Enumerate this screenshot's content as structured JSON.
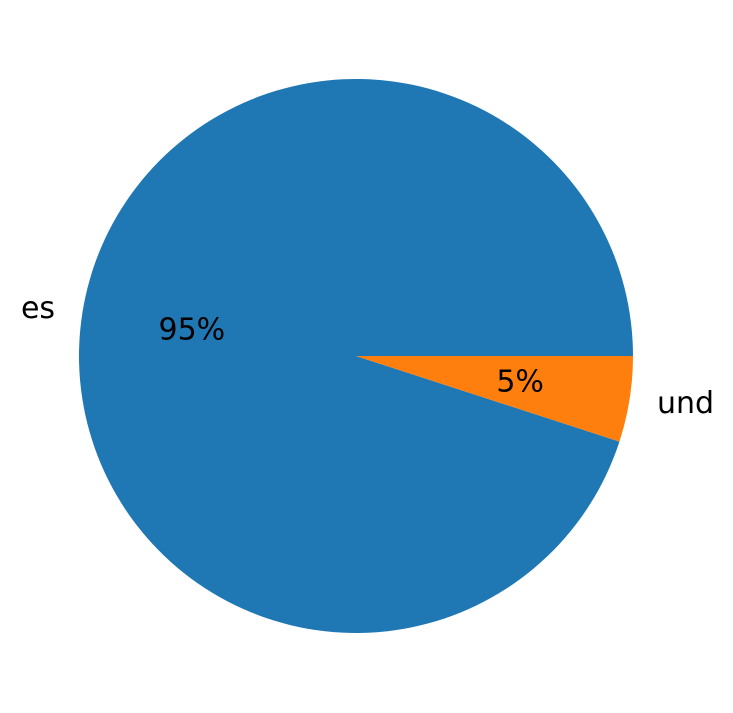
{
  "chart_data": {
    "type": "pie",
    "title": "",
    "labels": [
      "es",
      "und"
    ],
    "values": [
      95,
      5
    ],
    "pct_labels": [
      "95%",
      "5%"
    ],
    "colors": [
      "#1f77b4",
      "#ff7f0e"
    ],
    "start_angle": 0,
    "direction": "counterclockwise",
    "legend": "none"
  }
}
